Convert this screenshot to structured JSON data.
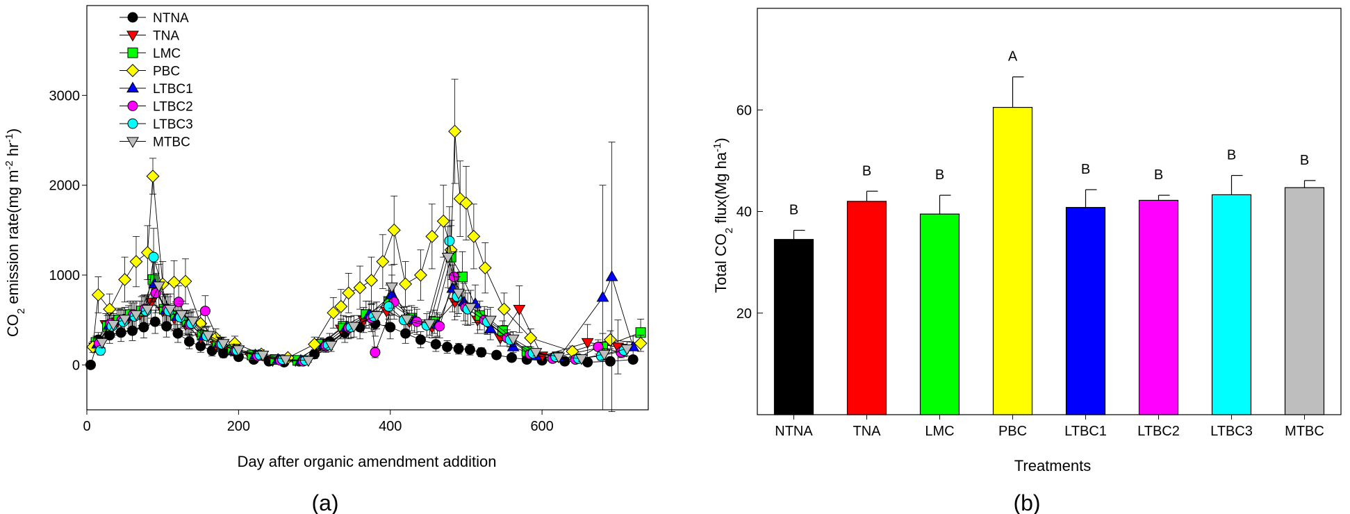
{
  "chart_data": [
    {
      "type": "scatter",
      "panel_label": "(a)",
      "xlabel": "Day after organic amendment addition",
      "ylabel": "CO2 emission rate(mg m-2 hr-1)",
      "ylabel_parts": {
        "co": "CO",
        "two": "2",
        "rest": " emission rate(mg m",
        "minus2": "-2",
        "hr": " hr",
        "minus1": "-1",
        "close": ")"
      },
      "xlim": [
        0,
        740
      ],
      "ylim": [
        -500,
        4000
      ],
      "xticks": [
        0,
        200,
        400,
        600
      ],
      "yticks": [
        0,
        1000,
        2000,
        3000
      ],
      "legend_position": "top-left",
      "series": [
        {
          "name": "NTNA",
          "marker": "circle",
          "color": "#000000",
          "x": [
            5,
            15,
            30,
            45,
            60,
            75,
            90,
            105,
            120,
            135,
            150,
            165,
            180,
            200,
            220,
            240,
            260,
            280,
            300,
            320,
            340,
            360,
            380,
            400,
            420,
            440,
            460,
            475,
            490,
            505,
            520,
            540,
            560,
            580,
            600,
            630,
            660,
            690,
            720
          ],
          "y": [
            0,
            280,
            330,
            360,
            380,
            420,
            480,
            430,
            350,
            260,
            210,
            160,
            130,
            90,
            60,
            40,
            30,
            40,
            120,
            260,
            360,
            420,
            460,
            420,
            350,
            280,
            230,
            200,
            180,
            170,
            140,
            110,
            80,
            60,
            50,
            40,
            30,
            40,
            60
          ],
          "yerr": [
            30,
            80,
            90,
            100,
            110,
            120,
            130,
            120,
            100,
            80,
            70,
            60,
            50,
            40,
            30,
            20,
            20,
            20,
            50,
            90,
            110,
            130,
            140,
            130,
            110,
            90,
            80,
            70,
            60,
            60,
            50,
            40,
            30,
            30,
            20,
            20,
            20,
            30,
            30
          ]
        },
        {
          "name": "TNA",
          "marker": "triangle-down",
          "color": "#ff0000",
          "x": [
            10,
            25,
            40,
            55,
            70,
            85,
            100,
            115,
            130,
            150,
            170,
            190,
            215,
            245,
            275,
            305,
            335,
            365,
            395,
            425,
            455,
            485,
            515,
            545,
            570,
            600,
            660,
            700
          ],
          "y": [
            200,
            450,
            480,
            520,
            560,
            700,
            600,
            520,
            450,
            300,
            220,
            160,
            100,
            50,
            50,
            200,
            400,
            500,
            600,
            480,
            420,
            700,
            500,
            300,
            620,
            100,
            250,
            200
          ],
          "yerr": [
            60,
            120,
            130,
            140,
            150,
            180,
            160,
            140,
            120,
            90,
            70,
            50,
            40,
            20,
            20,
            60,
            110,
            140,
            160,
            130,
            120,
            200,
            150,
            90,
            260,
            40,
            200,
            300
          ]
        },
        {
          "name": "LMC",
          "marker": "square",
          "color": "#00ff00",
          "x": [
            12,
            27,
            42,
            57,
            72,
            87,
            102,
            117,
            132,
            152,
            172,
            192,
            218,
            248,
            278,
            308,
            338,
            368,
            398,
            428,
            458,
            480,
            495,
            518,
            548,
            580,
            620,
            680,
            730
          ],
          "y": [
            250,
            430,
            500,
            560,
            600,
            950,
            620,
            550,
            480,
            330,
            250,
            170,
            110,
            60,
            50,
            230,
            430,
            560,
            700,
            520,
            480,
            1200,
            980,
            550,
            380,
            150,
            90,
            200,
            360
          ],
          "yerr": [
            70,
            120,
            130,
            150,
            160,
            250,
            170,
            150,
            130,
            100,
            80,
            60,
            40,
            20,
            20,
            70,
            120,
            150,
            190,
            140,
            130,
            350,
            280,
            160,
            110,
            50,
            40,
            150,
            150
          ]
        },
        {
          "name": "PBC",
          "marker": "diamond",
          "color": "#ffff00",
          "x": [
            8,
            15,
            30,
            50,
            65,
            80,
            87,
            100,
            115,
            130,
            150,
            170,
            195,
            230,
            265,
            300,
            325,
            335,
            345,
            360,
            375,
            390,
            405,
            420,
            440,
            455,
            470,
            480,
            485,
            492,
            500,
            510,
            525,
            550,
            585,
            640,
            690,
            730
          ],
          "y": [
            200,
            780,
            620,
            950,
            1150,
            1250,
            2100,
            900,
            920,
            930,
            460,
            300,
            240,
            120,
            80,
            230,
            580,
            650,
            800,
            860,
            940,
            1150,
            1500,
            900,
            1000,
            1430,
            1600,
            1280,
            2600,
            1850,
            1800,
            1430,
            1080,
            620,
            300,
            150,
            280,
            240
          ],
          "yerr": [
            60,
            200,
            170,
            250,
            280,
            300,
            200,
            250,
            240,
            250,
            140,
            100,
            80,
            50,
            30,
            80,
            170,
            190,
            220,
            240,
            260,
            300,
            380,
            250,
            280,
            360,
            400,
            330,
            580,
            420,
            410,
            360,
            280,
            180,
            100,
            60,
            100,
            90
          ]
        },
        {
          "name": "LTBC1",
          "marker": "triangle-up",
          "color": "#0000ff",
          "x": [
            14,
            29,
            44,
            59,
            74,
            89,
            104,
            119,
            134,
            154,
            174,
            194,
            222,
            252,
            282,
            312,
            342,
            372,
            402,
            432,
            462,
            482,
            497,
            512,
            532,
            562,
            592,
            622,
            680,
            692,
            720
          ],
          "y": [
            230,
            440,
            490,
            540,
            610,
            900,
            610,
            540,
            470,
            320,
            240,
            170,
            110,
            60,
            50,
            220,
            420,
            560,
            780,
            500,
            450,
            850,
            700,
            680,
            400,
            200,
            100,
            80,
            750,
            980,
            200
          ],
          "yerr": [
            60,
            120,
            130,
            150,
            160,
            240,
            170,
            150,
            130,
            100,
            70,
            60,
            40,
            20,
            20,
            70,
            120,
            150,
            220,
            140,
            130,
            260,
            210,
            210,
            120,
            60,
            40,
            40,
            1250,
            1500,
            120
          ]
        },
        {
          "name": "LTBC2",
          "marker": "circle",
          "color": "#ff00ff",
          "x": [
            16,
            31,
            46,
            61,
            76,
            91,
            106,
            121,
            136,
            156,
            176,
            196,
            225,
            255,
            285,
            315,
            345,
            375,
            380,
            405,
            435,
            465,
            484,
            499,
            524,
            554,
            584,
            614,
            644,
            674,
            704
          ],
          "y": [
            240,
            460,
            500,
            560,
            620,
            800,
            620,
            700,
            450,
            600,
            230,
            160,
            100,
            50,
            40,
            210,
            410,
            520,
            140,
            700,
            480,
            430,
            980,
            640,
            500,
            300,
            120,
            70,
            60,
            200,
            140
          ],
          "yerr": [
            60,
            120,
            130,
            150,
            160,
            220,
            170,
            180,
            130,
            170,
            70,
            60,
            40,
            20,
            20,
            70,
            120,
            150,
            60,
            190,
            140,
            130,
            280,
            190,
            150,
            90,
            40,
            30,
            30,
            80,
            60
          ]
        },
        {
          "name": "LTBC3",
          "marker": "circle",
          "color": "#00ffff",
          "x": [
            18,
            33,
            48,
            63,
            78,
            88,
            108,
            123,
            138,
            158,
            178,
            198,
            228,
            258,
            288,
            318,
            348,
            378,
            398,
            418,
            448,
            478,
            488,
            502,
            528,
            558,
            588,
            618,
            648,
            678,
            708
          ],
          "y": [
            160,
            430,
            480,
            540,
            600,
            1200,
            600,
            530,
            460,
            320,
            230,
            160,
            110,
            60,
            50,
            220,
            420,
            540,
            650,
            500,
            440,
            1380,
            760,
            620,
            480,
            280,
            130,
            90,
            70,
            100,
            160
          ],
          "yerr": [
            50,
            120,
            130,
            150,
            160,
            320,
            160,
            150,
            130,
            100,
            70,
            60,
            40,
            20,
            20,
            70,
            120,
            150,
            180,
            140,
            130,
            380,
            220,
            180,
            140,
            80,
            40,
            30,
            30,
            50,
            70
          ]
        },
        {
          "name": "MTBC",
          "marker": "triangle-down",
          "color": "#bebebe",
          "x": [
            20,
            35,
            50,
            65,
            80,
            95,
            110,
            125,
            140,
            160,
            180,
            200,
            232,
            262,
            292,
            322,
            352,
            382,
            402,
            422,
            452,
            476,
            490,
            506,
            532,
            562,
            592,
            622,
            652,
            682,
            712
          ],
          "y": [
            250,
            450,
            510,
            560,
            620,
            880,
            620,
            560,
            490,
            330,
            240,
            170,
            110,
            60,
            50,
            220,
            430,
            550,
            870,
            510,
            460,
            1200,
            800,
            640,
            500,
            290,
            140,
            90,
            70,
            120,
            180
          ],
          "yerr": [
            60,
            120,
            130,
            150,
            160,
            240,
            170,
            150,
            130,
            100,
            70,
            60,
            40,
            20,
            20,
            70,
            120,
            150,
            240,
            140,
            130,
            340,
            230,
            190,
            140,
            80,
            40,
            30,
            30,
            60,
            80
          ]
        }
      ]
    },
    {
      "type": "bar",
      "panel_label": "(b)",
      "xlabel": "Treatments",
      "ylabel": "Total CO2 flux(Mg ha-1)",
      "ylabel_parts": {
        "pre": "Total CO",
        "two": "2",
        "rest": " flux(Mg ha",
        "minus1": "-1",
        "close": ")"
      },
      "ylim": [
        0,
        80
      ],
      "yticks": [
        20,
        40,
        60
      ],
      "categories": [
        "NTNA",
        "TNA",
        "LMC",
        "PBC",
        "LTBC1",
        "LTBC2",
        "LTBC3",
        "MTBC"
      ],
      "values": [
        34.5,
        42.0,
        39.5,
        60.5,
        40.8,
        42.2,
        43.3,
        44.7
      ],
      "errors": [
        1.8,
        2.0,
        3.7,
        6.0,
        3.5,
        1.0,
        3.8,
        1.4
      ],
      "colors": [
        "#000000",
        "#ff0000",
        "#00ff00",
        "#ffff00",
        "#0000ff",
        "#ff00ff",
        "#00ffff",
        "#bebebe"
      ],
      "letters": [
        "B",
        "B",
        "B",
        "A",
        "B",
        "B",
        "B",
        "B"
      ]
    }
  ]
}
